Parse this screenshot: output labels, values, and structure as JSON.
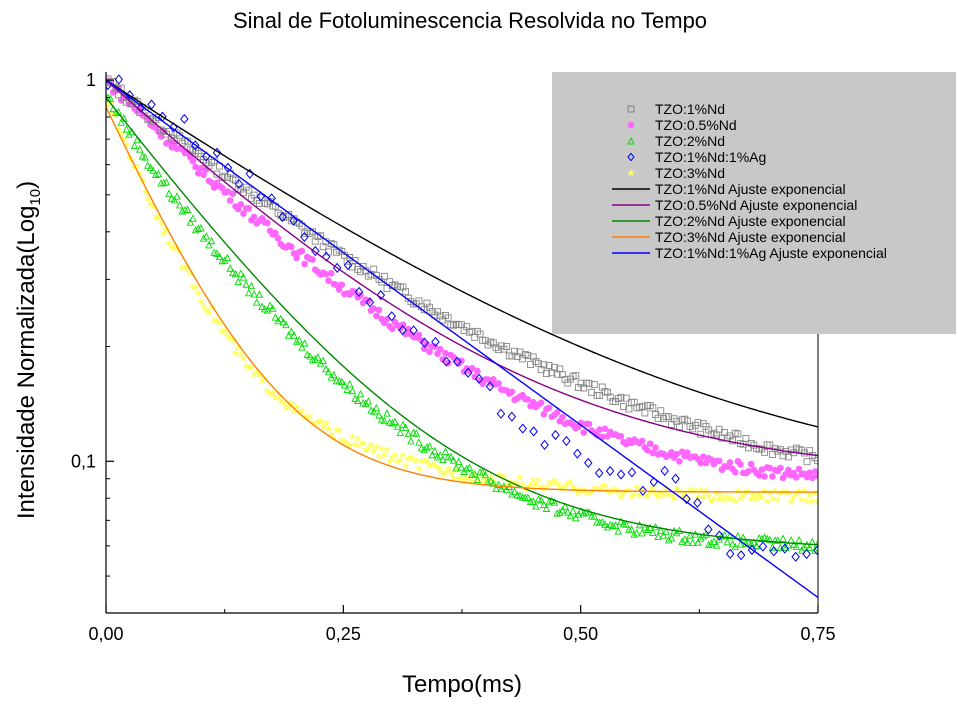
{
  "chart_data": {
    "type": "scatter",
    "title": "Sinal de Fotoluminescencia Resolvida no Tempo",
    "xlabel": "Tempo(ms)",
    "ylabel_main": "Intensidade Normalizada(Log",
    "ylabel_sub": "10",
    "ylabel_close": ")",
    "xlim": [
      0,
      0.75
    ],
    "ylim": [
      0.04,
      1.05
    ],
    "yscale": "log",
    "grid": false,
    "legend_position": "top-right",
    "x_ticks": [
      {
        "value": 0,
        "label": "0,00"
      },
      {
        "value": 0.25,
        "label": "0,25"
      },
      {
        "value": 0.5,
        "label": "0,50"
      },
      {
        "value": 0.75,
        "label": "0,75"
      }
    ],
    "y_ticks": [
      {
        "value": 1,
        "label": "1"
      },
      {
        "value": 0.1,
        "label": "0,1"
      }
    ],
    "series": [
      {
        "name": "TZO:1%Nd",
        "kind": "scatter",
        "marker": "square",
        "color": "#888888",
        "x": [
          0.0,
          0.05,
          0.1,
          0.15,
          0.2,
          0.25,
          0.3,
          0.35,
          0.4,
          0.45,
          0.5,
          0.55,
          0.6,
          0.65,
          0.7,
          0.75
        ],
        "y": [
          1.0,
          0.79,
          0.63,
          0.51,
          0.42,
          0.345,
          0.29,
          0.245,
          0.21,
          0.182,
          0.16,
          0.142,
          0.128,
          0.117,
          0.108,
          0.102
        ]
      },
      {
        "name": "TZO:0.5%Nd",
        "kind": "scatter",
        "marker": "circle",
        "color": "#ff66ff",
        "x": [
          0.0,
          0.05,
          0.1,
          0.15,
          0.2,
          0.25,
          0.3,
          0.35,
          0.4,
          0.45,
          0.5,
          0.55,
          0.6,
          0.65,
          0.7,
          0.75
        ],
        "y": [
          1.0,
          0.76,
          0.58,
          0.45,
          0.355,
          0.285,
          0.232,
          0.193,
          0.163,
          0.141,
          0.124,
          0.112,
          0.104,
          0.098,
          0.094,
          0.092
        ]
      },
      {
        "name": "TZO:2%Nd",
        "kind": "scatter",
        "marker": "triangle",
        "color": "#00dd00",
        "x": [
          0.0,
          0.05,
          0.1,
          0.15,
          0.2,
          0.25,
          0.3,
          0.35,
          0.4,
          0.45,
          0.5,
          0.55,
          0.6,
          0.65,
          0.7,
          0.75
        ],
        "y": [
          0.92,
          0.58,
          0.4,
          0.285,
          0.21,
          0.16,
          0.127,
          0.105,
          0.09,
          0.079,
          0.072,
          0.067,
          0.064,
          0.062,
          0.061,
          0.06
        ]
      },
      {
        "name": "TZO:1%Nd:1%Ag",
        "kind": "scatter",
        "marker": "diamond",
        "color": "#0000ee",
        "x": [
          0.0,
          0.05,
          0.1,
          0.15,
          0.2,
          0.25,
          0.3,
          0.35,
          0.4,
          0.45,
          0.5,
          0.55,
          0.6,
          0.65,
          0.7,
          0.75
        ],
        "y": [
          1.0,
          0.86,
          0.69,
          0.54,
          0.42,
          0.32,
          0.245,
          0.19,
          0.15,
          0.122,
          0.1,
          0.09,
          0.09,
          0.058,
          0.058,
          0.058
        ]
      },
      {
        "name": "TZO:3%Nd",
        "kind": "scatter",
        "marker": "star",
        "color": "#ffff66",
        "x": [
          0.0,
          0.05,
          0.1,
          0.15,
          0.2,
          0.25,
          0.3,
          0.35,
          0.4,
          0.45,
          0.5,
          0.55,
          0.6,
          0.65,
          0.7,
          0.75
        ],
        "y": [
          0.9,
          0.46,
          0.27,
          0.175,
          0.135,
          0.115,
          0.103,
          0.095,
          0.09,
          0.087,
          0.085,
          0.083,
          0.082,
          0.081,
          0.081,
          0.081
        ]
      },
      {
        "name": "TZO:1%Nd Ajuste exponencial",
        "kind": "line",
        "color": "#000000",
        "y0": 1.0,
        "A": 0.92,
        "tau": 0.245,
        "c": 0.08
      },
      {
        "name": "TZO:0.5%Nd Ajuste exponencial",
        "kind": "line",
        "color": "#880088",
        "y0": 1.0,
        "A": 0.91,
        "tau": 0.178,
        "c": 0.09
      },
      {
        "name": "TZO:2%Nd Ajuste exponencial",
        "kind": "line",
        "color": "#008800",
        "y0": 0.9,
        "A": 0.84,
        "tau": 0.128,
        "c": 0.058
      },
      {
        "name": "TZO:3%Nd Ajuste exponencial",
        "kind": "line",
        "color": "#ff8000",
        "y0": 0.85,
        "A": 0.77,
        "tau": 0.075,
        "c": 0.083
      },
      {
        "name": "TZO:1%Nd:1%Ag Ajuste exponencial",
        "kind": "line",
        "color": "#0000ff",
        "y0": 1.0,
        "A": 1.0,
        "tau": 0.24,
        "c": 0.0
      }
    ]
  }
}
